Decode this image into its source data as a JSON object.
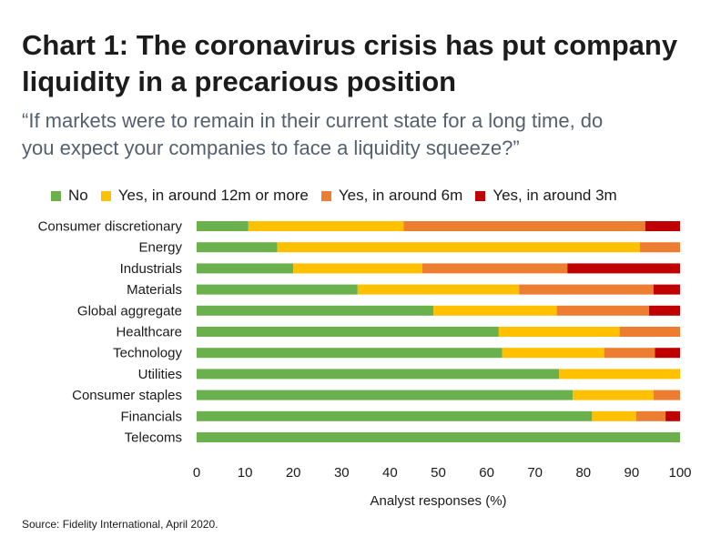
{
  "title_line1": "Chart 1: The coronavirus crisis has put company",
  "title_line2": "liquidity in a precarious position",
  "subtitle_line1": "“If markets were to remain in their current state for a long time, do",
  "subtitle_line2": "you expect your companies to face a liquidity squeeze?”",
  "source": "Source: Fidelity International, April 2020.",
  "chart_data": {
    "type": "bar",
    "orientation": "horizontal",
    "stacked": true,
    "xlabel": "Analyst responses (%)",
    "ylabel": "",
    "xlim": [
      0,
      100
    ],
    "xticks": [
      0,
      10,
      20,
      30,
      40,
      50,
      60,
      70,
      80,
      90,
      100
    ],
    "grid": false,
    "legend_position": "top",
    "categories": [
      "Consumer discretionary",
      "Energy",
      "Industrials",
      "Materials",
      "Global aggregate",
      "Healthcare",
      "Technology",
      "Utilities",
      "Consumer staples",
      "Financials",
      "Telecoms"
    ],
    "series": [
      {
        "name": "No",
        "color": "#6ab04c",
        "values": [
          10.7,
          16.7,
          20.0,
          33.3,
          49.0,
          62.5,
          63.2,
          75.0,
          77.8,
          81.8,
          100
        ]
      },
      {
        "name": "Yes, in around 12m or more",
        "color": "#ffc000",
        "values": [
          32.1,
          75.0,
          26.7,
          33.4,
          25.5,
          25.0,
          21.1,
          25.0,
          16.7,
          9.1,
          0
        ]
      },
      {
        "name": "Yes, in around 6m",
        "color": "#ed7d31",
        "values": [
          50.0,
          8.3,
          30.0,
          27.8,
          19.1,
          12.5,
          10.5,
          0,
          5.5,
          6.1,
          0
        ]
      },
      {
        "name": "Yes, in around 3m",
        "color": "#c00000",
        "values": [
          7.2,
          0,
          23.3,
          5.5,
          6.4,
          0,
          5.2,
          0,
          0,
          3.0,
          0
        ]
      }
    ]
  }
}
